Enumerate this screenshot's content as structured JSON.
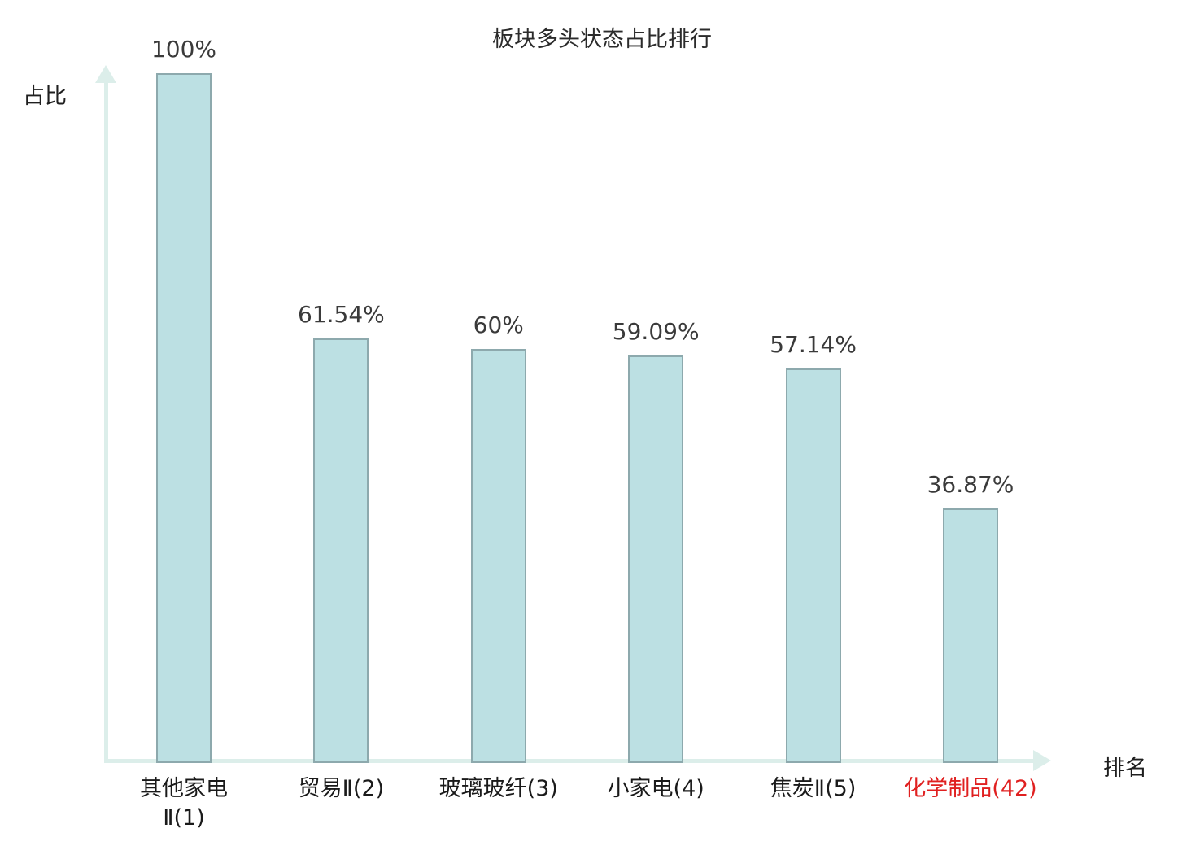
{
  "chart_data": {
    "type": "bar",
    "title": "板块多头状态占比排行",
    "ylabel": "占比",
    "xlabel": "排名",
    "categories": [
      "其他家电\nⅡ(1)",
      "贸易Ⅱ(2)",
      "玻璃玻纤(3)",
      "小家电(4)",
      "焦炭Ⅱ(5)",
      "化学制品(42)"
    ],
    "values": [
      100,
      61.54,
      60,
      59.09,
      57.14,
      36.87
    ],
    "value_labels": [
      "100%",
      "61.54%",
      "60%",
      "59.09%",
      "57.14%",
      "36.87%"
    ],
    "category_colors": [
      "#1a1a1a",
      "#1a1a1a",
      "#1a1a1a",
      "#1a1a1a",
      "#1a1a1a",
      "#e02020"
    ],
    "highlight_index": 5,
    "ylim": [
      0,
      100
    ],
    "grid": false,
    "legend": "none",
    "colors": {
      "bar_fill": "#bce0e3",
      "bar_border": "#8da9ad",
      "axis": "#dceeea",
      "value_text": "#3a3a3a",
      "highlight_text": "#e02020"
    }
  }
}
